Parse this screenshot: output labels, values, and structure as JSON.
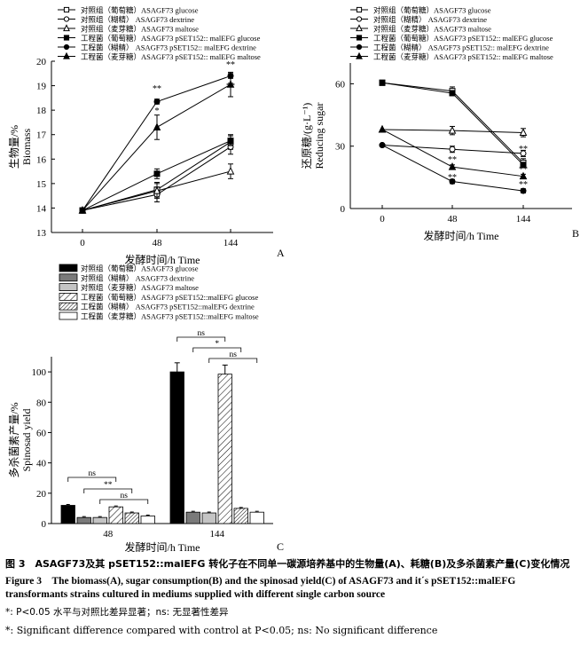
{
  "chart_data": [
    {
      "type": "line",
      "panel": "A",
      "x": [
        0,
        48,
        144
      ],
      "xlabel": "发酵时间/h  Time",
      "ylabel_cn": "生物量/%",
      "ylabel_en": "Biomass",
      "ylim": [
        13,
        20
      ],
      "yticks": [
        13,
        14,
        15,
        16,
        17,
        18,
        19,
        20
      ],
      "series": [
        {
          "name": "对照组（葡萄糖）ASAGF73 glucose",
          "marker": "open-square",
          "values": [
            13.9,
            14.75,
            16.7
          ]
        },
        {
          "name": "对照组（糊精）  ASAGF73 dextrine",
          "marker": "open-circle",
          "values": [
            13.9,
            14.55,
            16.5
          ]
        },
        {
          "name": "对照组（麦芽糖）ASAGF73 maltose",
          "marker": "open-triangle",
          "values": [
            13.9,
            14.7,
            15.5
          ]
        },
        {
          "name": "工程菌（葡萄糖）ASAGF73 pSET152:: malEFG glucose",
          "marker": "filled-square",
          "values": [
            13.9,
            15.4,
            16.75
          ]
        },
        {
          "name": "工程菌（糊精）  ASAGF73 pSET152:: malEFG  dextrine",
          "marker": "filled-circle",
          "values": [
            13.9,
            18.35,
            19.4
          ]
        },
        {
          "name": "工程菌（麦芽糖）ASAGF73 pSET152:: malEFG maltose",
          "marker": "filled-triangle",
          "values": [
            13.9,
            17.3,
            19.05
          ]
        }
      ],
      "annotations": [
        "**",
        "*",
        "**",
        "**"
      ],
      "panel_label": "A"
    },
    {
      "type": "line",
      "panel": "B",
      "x": [
        0,
        48,
        144
      ],
      "xlabel": "发酵时间/h  Time",
      "ylabel_cn": "还原糖/(g·L⁻¹)",
      "ylabel_en": "Reducing sugar",
      "ylim": [
        0,
        70
      ],
      "yticks": [
        0,
        30,
        60
      ],
      "series": [
        {
          "name": "对照组（葡萄糖）ASAGF73 glucose",
          "marker": "open-square",
          "values": [
            60.5,
            56.5,
            22
          ]
        },
        {
          "name": "对照组（糊精）  ASAGF73 dextrine",
          "marker": "open-circle",
          "values": [
            30.5,
            28.5,
            26.5
          ]
        },
        {
          "name": "对照组（麦芽糖）ASAGF73 maltose",
          "marker": "open-triangle",
          "values": [
            38,
            37.5,
            36.5
          ]
        },
        {
          "name": "工程菌（葡萄糖）ASAGF73 pSET152:: malEFG glucose",
          "marker": "filled-square",
          "values": [
            60.5,
            55.5,
            21
          ]
        },
        {
          "name": "工程菌（糊精）  ASAGF73 pSET152:: malEFG  dextrine",
          "marker": "filled-circle",
          "values": [
            30.5,
            13,
            8.5
          ]
        },
        {
          "name": "工程菌（麦芽糖）ASAGF73 pSET152:: malEFG maltose",
          "marker": "filled-triangle",
          "values": [
            38,
            20,
            15.5
          ]
        }
      ],
      "annotations": [
        "**",
        "**",
        "**",
        "**",
        "**"
      ],
      "panel_label": "B"
    },
    {
      "type": "bar",
      "panel": "C",
      "categories": [
        "48",
        "144"
      ],
      "xlabel": "发酵时间/h  Time",
      "ylabel_cn": "多杀菌素产量/%",
      "ylabel_en": "Spinosad yield",
      "ylim": [
        0,
        110
      ],
      "yticks": [
        0,
        20,
        40,
        60,
        80,
        100
      ],
      "series": [
        {
          "name": "对照组（葡萄糖）ASAGF73 glucose",
          "fill": "black",
          "values": [
            12,
            100
          ]
        },
        {
          "name": "对照组（糊精）  ASAGF73 dextrine",
          "fill": "darkgray",
          "values": [
            4,
            7.5
          ]
        },
        {
          "name": "对照组（麦芽糖）ASAGF73 maltose",
          "fill": "lightgray",
          "values": [
            4,
            7
          ]
        },
        {
          "name": "工程菌（葡萄糖）ASAGF73 pSET152::malEFG glucose",
          "fill": "hatch-sparse",
          "values": [
            11,
            98.5
          ]
        },
        {
          "name": "工程菌（糊精）  ASAGF73 pSET152::malEFG dextrine",
          "fill": "hatch-dense",
          "values": [
            7,
            10
          ]
        },
        {
          "name": "工程菌（麦芽糖）ASAGF73 pSET152::malEFG maltose",
          "fill": "white",
          "values": [
            5,
            7.5
          ]
        }
      ],
      "brackets": [
        {
          "group": 0,
          "from": 0,
          "to": 3,
          "label": "ns"
        },
        {
          "group": 0,
          "from": 1,
          "to": 4,
          "label": "**"
        },
        {
          "group": 0,
          "from": 2,
          "to": 5,
          "label": "ns"
        },
        {
          "group": 1,
          "from": 0,
          "to": 3,
          "label": "ns"
        },
        {
          "group": 1,
          "from": 1,
          "to": 4,
          "label": "*"
        },
        {
          "group": 1,
          "from": 2,
          "to": 5,
          "label": "ns"
        }
      ],
      "panel_label": "C"
    }
  ],
  "caption": {
    "cn": "图 3　ASAGF73及其 pSET152::malEFG 转化子在不同单一碳源培养基中的生物量(A)、耗糖(B)及多杀菌素产量(C)变化情况",
    "en_line1": "Figure 3　The biomass(A), sugar consumption(B) and the spinosad yield(C) of ASAGF73 and it´s pSET152::malEFG",
    "en_line2": "transformants strains cultured in mediums supplied with different single carbon source",
    "note_cn": "*: P<0.05 水平与对照比差异显著；ns: 无显著性差异",
    "note_en": "*: Significant difference compared with control at P<0.05; ns: No significant difference"
  }
}
